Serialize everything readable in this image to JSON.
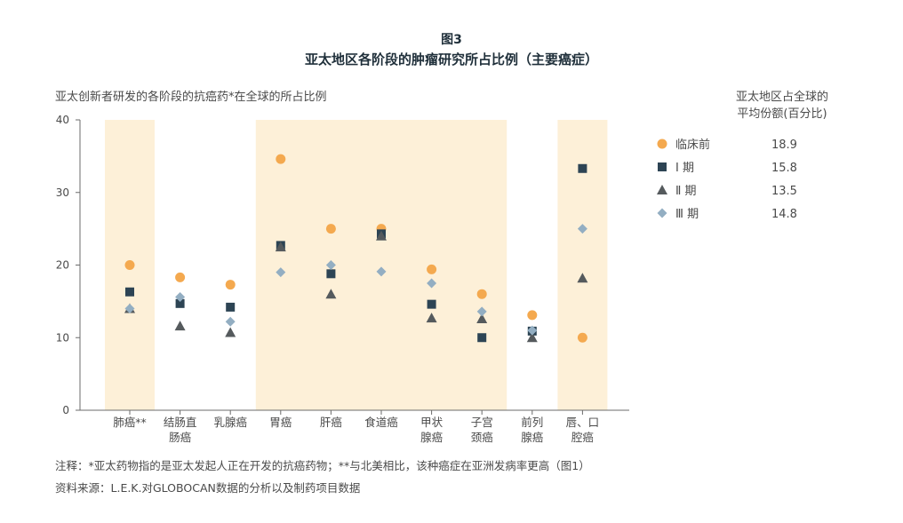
{
  "figure": {
    "label": "图3",
    "title": "亚太地区各阶段的肿瘤研究所占比例（主要癌症）"
  },
  "chart_data": {
    "type": "scatter",
    "ylabel": "亚太创新者研发的各阶段的抗癌药*在全球的所占比例",
    "ylim": [
      0,
      40
    ],
    "yticks": [
      0,
      10,
      20,
      30,
      40
    ],
    "categories": [
      [
        "肺癌**"
      ],
      [
        "结肠直",
        "肠癌"
      ],
      [
        "乳腺癌"
      ],
      [
        "胃癌"
      ],
      [
        "肝癌"
      ],
      [
        "食道癌"
      ],
      [
        "甲状",
        "腺癌"
      ],
      [
        "子宫",
        "颈癌"
      ],
      [
        "前列",
        "腺癌"
      ],
      [
        "唇、口",
        "腔癌"
      ]
    ],
    "highlighted_categories": [
      0,
      3,
      4,
      5,
      6,
      7,
      9
    ],
    "highlight_color": "#fdf0d8",
    "series": [
      {
        "name": "临床前",
        "marker": "circle",
        "color": "#f4a94f",
        "values": [
          20.0,
          18.3,
          17.3,
          34.6,
          25.0,
          25.0,
          19.4,
          16.0,
          13.1,
          10.0
        ]
      },
      {
        "name": "Ⅰ 期",
        "marker": "square",
        "color": "#2d4454",
        "values": [
          16.3,
          14.7,
          14.2,
          22.7,
          18.8,
          24.3,
          14.6,
          10.0,
          10.9,
          33.3
        ]
      },
      {
        "name": "Ⅱ 期",
        "marker": "triangle",
        "color": "#555a5d",
        "values": [
          14.0,
          11.6,
          10.7,
          22.5,
          16.0,
          24.0,
          12.7,
          12.6,
          10.0,
          18.2
        ]
      },
      {
        "name": "Ⅲ 期",
        "marker": "diamond",
        "color": "#93aec2",
        "values": [
          14.0,
          15.6,
          12.2,
          19.0,
          20.0,
          19.1,
          17.5,
          13.6,
          11.0,
          25.0
        ]
      }
    ],
    "legend": {
      "title": [
        "亚太地区占全球的",
        "平均份额(百分比)"
      ],
      "placement": "right",
      "averages": [
        "18.9",
        "15.8",
        "13.5",
        "14.8"
      ]
    }
  },
  "notes": {
    "note": "注释：*亚太药物指的是亚太发起人正在开发的抗癌药物；**与北美相比，该种癌症在亚洲发病率更高（图1）",
    "source": "资料来源：L.E.K.对GLOBOCAN数据的分析以及制药项目数据"
  }
}
